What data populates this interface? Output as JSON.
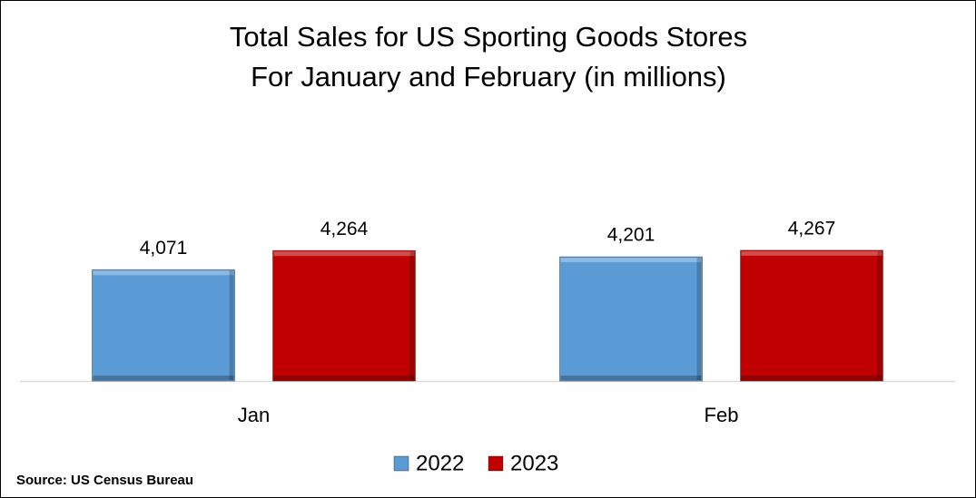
{
  "chart_data": {
    "type": "bar",
    "title": "Total Sales for US Sporting Goods Stores",
    "subtitle": "For January and February (in millions)",
    "source": "Source: US Census Bureau",
    "categories": [
      "Jan",
      "Feb"
    ],
    "series": [
      {
        "name": "2022",
        "color": "#5b9bd5",
        "values": [
          4071,
          4201
        ],
        "value_labels": [
          "4,071",
          "4,201"
        ]
      },
      {
        "name": "2023",
        "color": "#c00000",
        "values": [
          4264,
          4267
        ],
        "value_labels": [
          "4,264",
          "4,267"
        ]
      }
    ],
    "ylim": [
      2950,
      5600
    ],
    "legend": "bottom"
  }
}
